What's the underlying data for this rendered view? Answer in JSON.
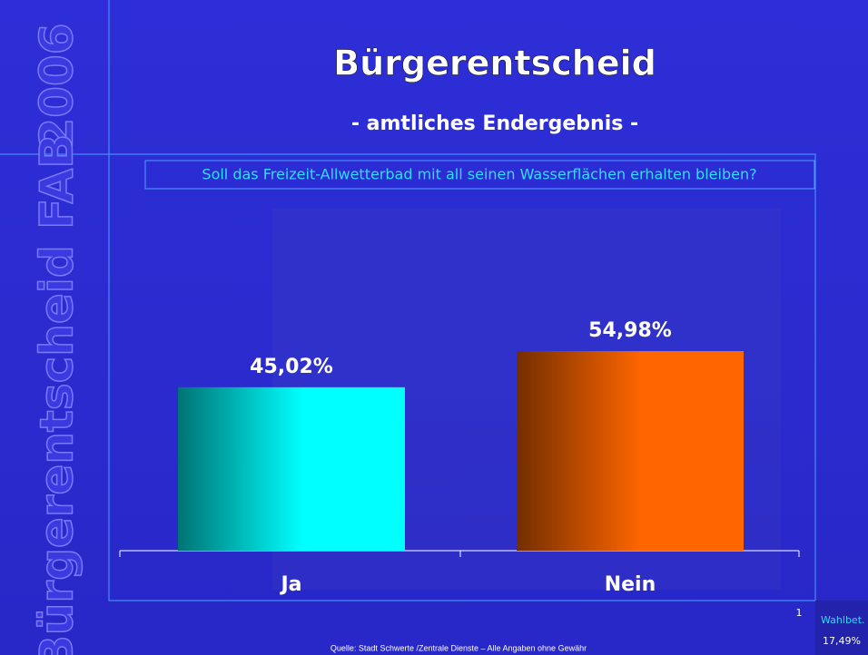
{
  "chart_data": {
    "type": "bar",
    "title": "Bürgerentscheid",
    "subtitle": "- amtliches Endergebnis -",
    "question": "Soll das Freizeit-Allwetterbad mit all seinen Wasserflächen erhalten bleiben?",
    "categories": [
      "Ja",
      "Nein"
    ],
    "values": [
      45.02,
      54.98
    ],
    "value_labels": [
      "45,02%",
      "54,98%"
    ],
    "colors": [
      "#00ffff",
      "#ff6600"
    ]
  },
  "side_label": "Bürgerentscheid FAB",
  "year": "2006",
  "page_number": "1",
  "turnout_label": "Wahlbet.",
  "turnout_value": "17,49%",
  "source": "Quelle: Stadt Schwerte /Zentrale Dienste – Alle Angaben ohne Gewähr"
}
